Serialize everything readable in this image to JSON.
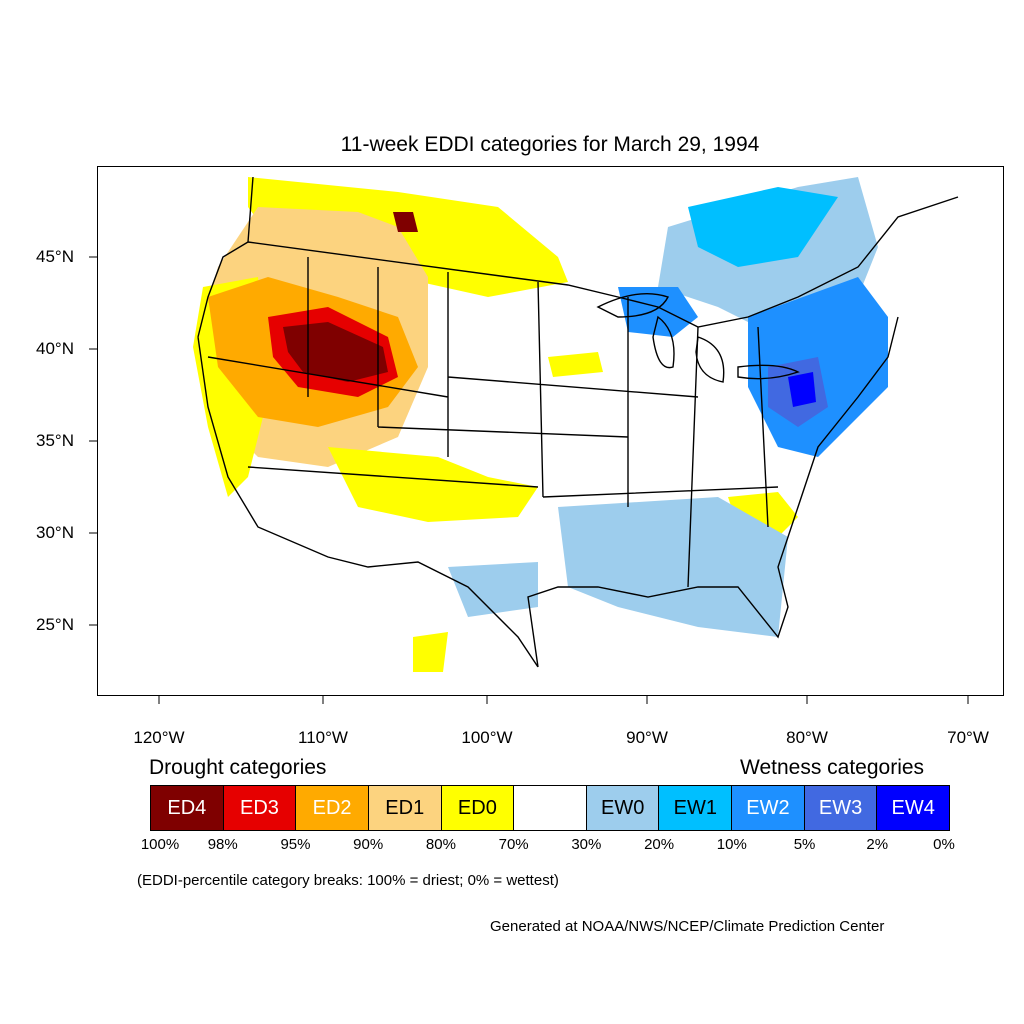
{
  "title": "11-week EDDI categories for March 29, 1994",
  "map": {
    "latitude_labels": [
      "45°N",
      "40°N",
      "35°N",
      "30°N",
      "25°N"
    ],
    "longitude_labels": [
      "120°W",
      "110°W",
      "100°W",
      "90°W",
      "80°W",
      "70°W"
    ],
    "regions": [
      {
        "name": "northern-rockies-drought",
        "category": "ED1"
      },
      {
        "name": "great-basin-drought",
        "category": "ED2"
      },
      {
        "name": "utah-wyoming-drought-core",
        "category": "ED4"
      },
      {
        "name": "northern-plains-drought",
        "category": "ED0"
      },
      {
        "name": "great-lakes-wetness",
        "category": "EW1"
      },
      {
        "name": "mid-atlantic-wetness",
        "category": "EW3"
      },
      {
        "name": "northeast-wetness",
        "category": "EW2"
      },
      {
        "name": "gulf-coast-wetness",
        "category": "EW0"
      }
    ]
  },
  "legend": {
    "drought_heading": "Drought categories",
    "wetness_heading": "Wetness categories",
    "categories": [
      {
        "label": "ED4",
        "color": "#7f0000",
        "text_color": "#ffffff"
      },
      {
        "label": "ED3",
        "color": "#e60000",
        "text_color": "#ffffff"
      },
      {
        "label": "ED2",
        "color": "#ffaa00",
        "text_color": "#ffffff"
      },
      {
        "label": "ED1",
        "color": "#fcd37f",
        "text_color": "#000000"
      },
      {
        "label": "ED0",
        "color": "#ffff00",
        "text_color": "#000000"
      },
      {
        "label": "",
        "color": "#ffffff",
        "text_color": "#000000"
      },
      {
        "label": "EW0",
        "color": "#9dcded",
        "text_color": "#000000"
      },
      {
        "label": "EW1",
        "color": "#00bfff",
        "text_color": "#000000"
      },
      {
        "label": "EW2",
        "color": "#1e90ff",
        "text_color": "#ffffff"
      },
      {
        "label": "EW3",
        "color": "#4169e1",
        "text_color": "#ffffff"
      },
      {
        "label": "EW4",
        "color": "#0000ff",
        "text_color": "#ffffff"
      }
    ],
    "breaks": [
      "100%",
      "98%",
      "95%",
      "90%",
      "80%",
      "70%",
      "30%",
      "20%",
      "10%",
      "5%",
      "2%",
      "0%"
    ],
    "note": "(EDDI-percentile category breaks: 100% = driest; 0% = wettest)"
  },
  "credit": "Generated at NOAA/NWS/NCEP/Climate Prediction Center"
}
